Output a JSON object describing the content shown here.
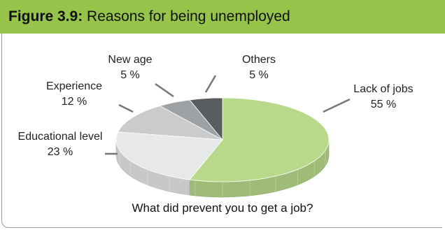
{
  "figure": {
    "label": "Figure 3.9:",
    "title": "Reasons for being unemployed"
  },
  "chart_data": {
    "type": "pie",
    "title": "Reasons for being unemployed",
    "slices": [
      {
        "name": "Lack of jobs",
        "value": 55,
        "value_label": "55 %",
        "color": "#b8d98a",
        "label_lines": [
          "Lack of jobs",
          "55 %"
        ]
      },
      {
        "name": "Educational level",
        "value": 23,
        "value_label": "23 %",
        "color": "#e6e8ea",
        "label_lines": [
          "Educational level",
          "23 %"
        ]
      },
      {
        "name": "Experience",
        "value": 12,
        "value_label": "12 %",
        "color": "#c9cbcd",
        "label_lines": [
          "Experience",
          "12 %"
        ]
      },
      {
        "name": "New age",
        "value": 5,
        "value_label": "5 %",
        "color": "#9fa2a5",
        "label_lines": [
          "New age",
          "5 %"
        ]
      },
      {
        "name": "Others",
        "value": 5,
        "value_label": "5 %",
        "color": "#5a5d60",
        "label_lines": [
          "Others",
          "5 %"
        ]
      }
    ],
    "caption": "What did prevent you to get a job?"
  }
}
